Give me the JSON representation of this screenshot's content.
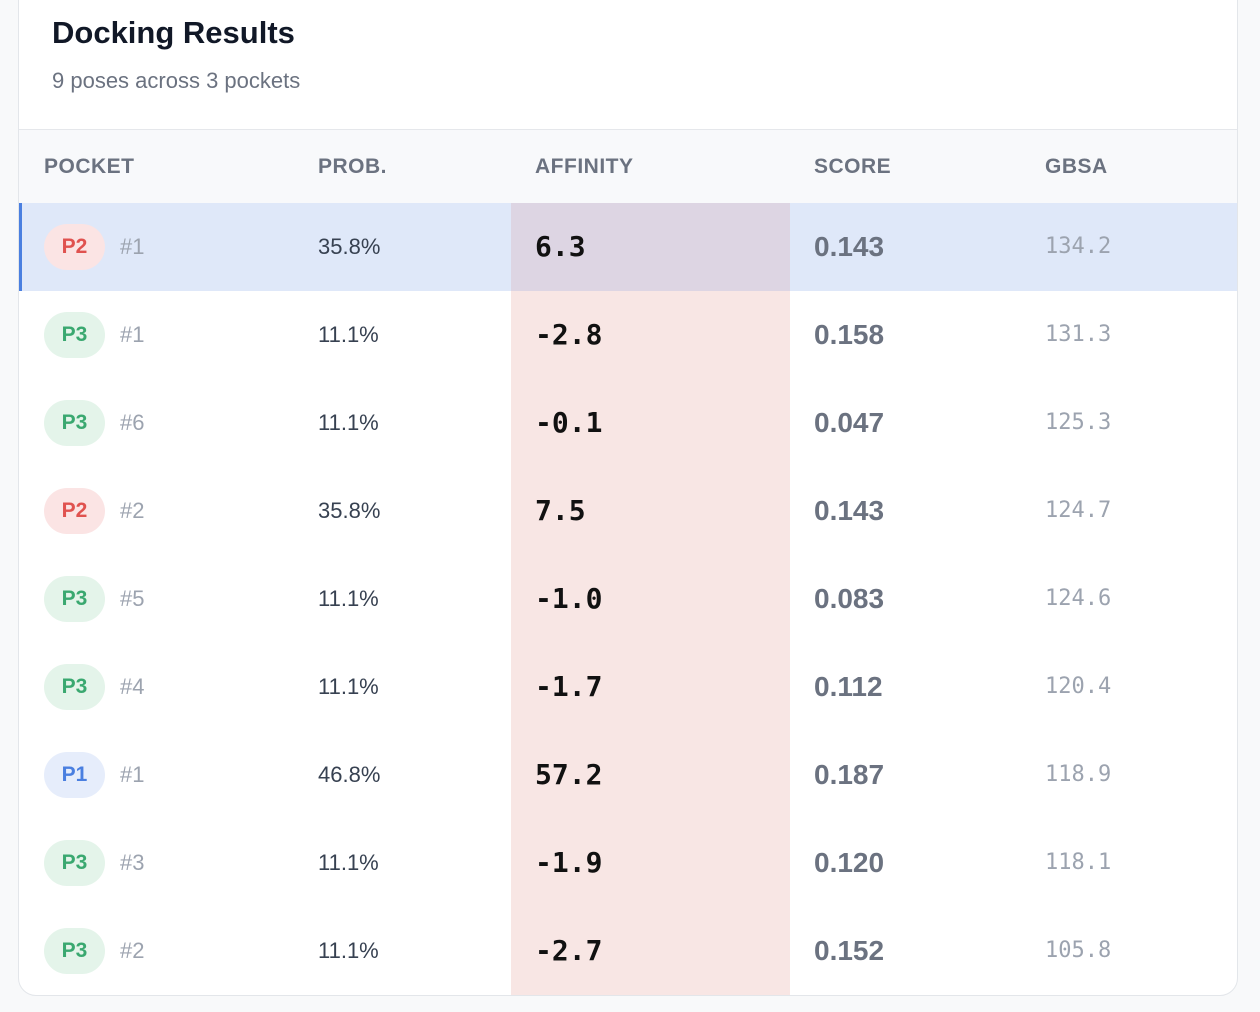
{
  "header": {
    "title": "Docking Results",
    "subtitle": "9 poses across 3 pockets"
  },
  "pocket_colors": {
    "P1": {
      "text": "#4a7fe0",
      "bg": "#e6edfb"
    },
    "P2": {
      "text": "#e0524f",
      "bg": "#fbe4e4"
    },
    "P3": {
      "text": "#3aa870",
      "bg": "#e4f4ea"
    }
  },
  "table": {
    "columns": [
      "POCKET",
      "PROB.",
      "AFFINITY",
      "SCORE",
      "GBSA"
    ],
    "rows": [
      {
        "pocket": "P2",
        "pose": "#1",
        "prob": "35.8%",
        "affinity": "6.3",
        "score": "0.143",
        "gbsa": "134.2",
        "selected": true
      },
      {
        "pocket": "P3",
        "pose": "#1",
        "prob": "11.1%",
        "affinity": "-2.8",
        "score": "0.158",
        "gbsa": "131.3"
      },
      {
        "pocket": "P3",
        "pose": "#6",
        "prob": "11.1%",
        "affinity": "-0.1",
        "score": "0.047",
        "gbsa": "125.3"
      },
      {
        "pocket": "P2",
        "pose": "#2",
        "prob": "35.8%",
        "affinity": "7.5",
        "score": "0.143",
        "gbsa": "124.7"
      },
      {
        "pocket": "P3",
        "pose": "#5",
        "prob": "11.1%",
        "affinity": "-1.0",
        "score": "0.083",
        "gbsa": "124.6"
      },
      {
        "pocket": "P3",
        "pose": "#4",
        "prob": "11.1%",
        "affinity": "-1.7",
        "score": "0.112",
        "gbsa": "120.4"
      },
      {
        "pocket": "P1",
        "pose": "#1",
        "prob": "46.8%",
        "affinity": "57.2",
        "score": "0.187",
        "gbsa": "118.9"
      },
      {
        "pocket": "P3",
        "pose": "#3",
        "prob": "11.1%",
        "affinity": "-1.9",
        "score": "0.120",
        "gbsa": "118.1"
      },
      {
        "pocket": "P3",
        "pose": "#2",
        "prob": "11.1%",
        "affinity": "-2.7",
        "score": "0.152",
        "gbsa": "105.8"
      }
    ]
  }
}
